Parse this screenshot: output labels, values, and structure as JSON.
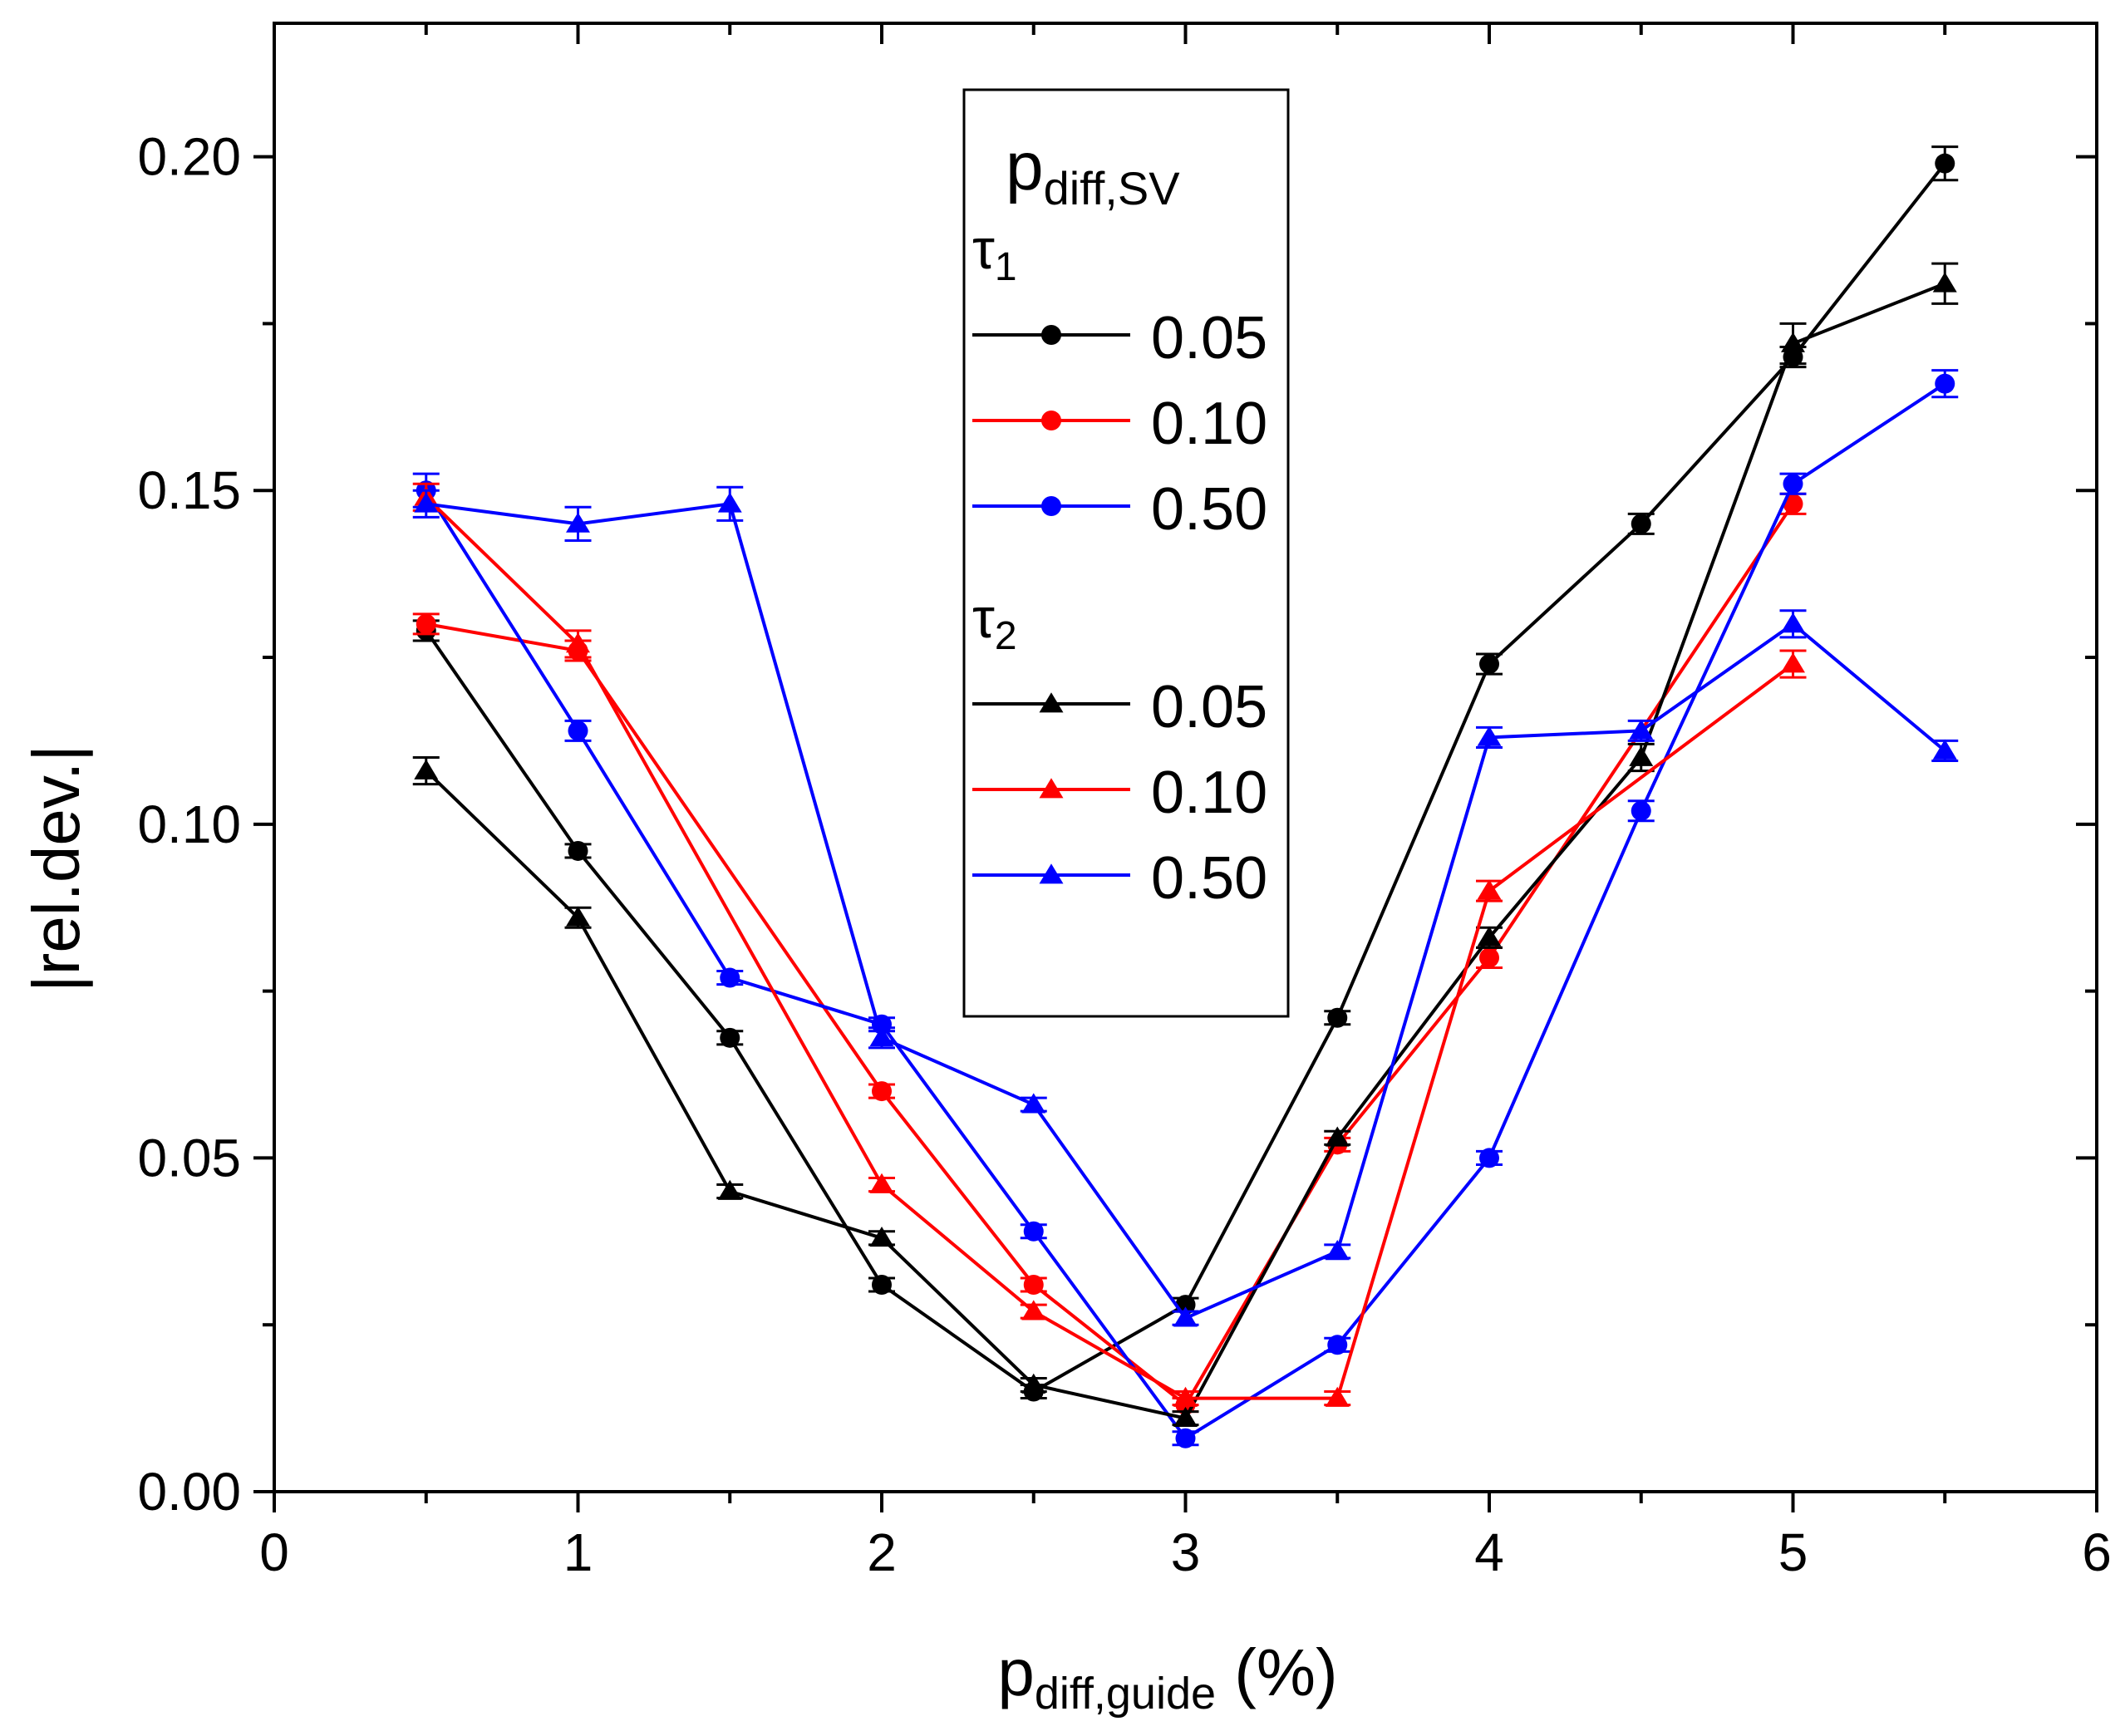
{
  "chart_data": {
    "type": "line",
    "xlabel": {
      "main": "p",
      "sub": "diff,guide",
      "unit": " (%)"
    },
    "ylabel": "|rel.dev.|",
    "xlim": [
      0,
      6
    ],
    "ylim": [
      0,
      0.22
    ],
    "xticks": [
      "0",
      "1",
      "2",
      "3",
      "4",
      "5",
      "6"
    ],
    "yticks": [
      "0.00",
      "0.05",
      "0.10",
      "0.15",
      "0.20"
    ],
    "grid": false,
    "legend": {
      "placement": "top-center",
      "title_main": "p",
      "title_sub": "diff,SV",
      "groups": [
        {
          "label_main": "τ",
          "label_sub": "1",
          "entries": [
            "0.05",
            "0.10",
            "0.50"
          ]
        },
        {
          "label_main": "τ",
          "label_sub": "2",
          "entries": [
            "0.05",
            "0.10",
            "0.50"
          ]
        }
      ]
    },
    "x": [
      0.5,
      1,
      1.5,
      2,
      2.5,
      3,
      3.5,
      4,
      4.5,
      5,
      5.5
    ],
    "series": [
      {
        "name": "τ1 0.05",
        "group": "τ1",
        "color": "#000000",
        "marker": "circle",
        "values": [
          0.129,
          0.096,
          0.068,
          0.031,
          0.015,
          0.028,
          0.071,
          0.124,
          0.145,
          0.17,
          0.199
        ],
        "errors": [
          0.0015,
          0.001,
          0.001,
          0.001,
          0.001,
          0.001,
          0.001,
          0.0015,
          0.0015,
          0.0015,
          0.0025
        ]
      },
      {
        "name": "τ1 0.10",
        "group": "τ1",
        "color": "#ff0000",
        "marker": "circle",
        "values": [
          0.13,
          0.126,
          null,
          0.06,
          0.031,
          0.013,
          0.052,
          0.08,
          null,
          0.148,
          null
        ],
        "errors": [
          0.0015,
          0.0015,
          0,
          0.001,
          0.001,
          0.001,
          0.001,
          0.0015,
          0,
          0.0015,
          0
        ]
      },
      {
        "name": "τ1 0.50",
        "group": "τ1",
        "color": "#0000ff",
        "marker": "circle",
        "values": [
          0.15,
          0.114,
          0.077,
          0.07,
          0.039,
          0.008,
          0.022,
          0.05,
          0.102,
          0.151,
          0.166
        ],
        "errors": [
          0.0025,
          0.0015,
          0.001,
          0.001,
          0.001,
          0.001,
          0.001,
          0.001,
          0.0015,
          0.0015,
          0.002
        ]
      },
      {
        "name": "τ2 0.05",
        "group": "τ2",
        "color": "#000000",
        "marker": "triangle",
        "values": [
          0.108,
          0.086,
          0.045,
          0.038,
          0.016,
          0.011,
          0.053,
          0.083,
          0.11,
          0.172,
          0.181
        ],
        "errors": [
          0.002,
          0.0015,
          0.001,
          0.001,
          0.001,
          0.001,
          0.001,
          0.0015,
          0.002,
          0.003,
          0.003
        ]
      },
      {
        "name": "τ2 0.10",
        "group": "τ2",
        "color": "#ff0000",
        "marker": "triangle",
        "values": [
          0.149,
          0.127,
          null,
          0.046,
          0.027,
          0.014,
          0.014,
          0.09,
          null,
          0.124,
          null
        ],
        "errors": [
          0.002,
          0.002,
          0,
          0.001,
          0.001,
          0.001,
          0.001,
          0.0015,
          0,
          0.002,
          0
        ]
      },
      {
        "name": "τ2 0.50",
        "group": "τ2",
        "color": "#0000ff",
        "marker": "triangle",
        "values": [
          0.148,
          0.145,
          0.148,
          0.068,
          0.058,
          0.026,
          0.036,
          0.113,
          0.114,
          0.13,
          0.111
        ],
        "errors": [
          0.002,
          0.0025,
          0.0025,
          0.0015,
          0.001,
          0.001,
          0.001,
          0.0015,
          0.0015,
          0.002,
          0.0015
        ]
      }
    ]
  }
}
